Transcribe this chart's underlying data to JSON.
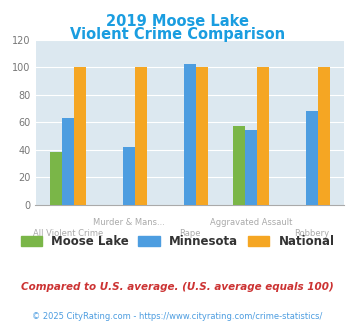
{
  "title_line1": "2019 Moose Lake",
  "title_line2": "Violent Crime Comparison",
  "title_color": "#1a9de0",
  "categories": [
    "All Violent Crime",
    "Murder & Mans...",
    "Rape",
    "Aggravated Assault",
    "Robbery"
  ],
  "cat_top": [
    "",
    "Murder & Mans...",
    "",
    "Aggravated Assault",
    ""
  ],
  "cat_bot": [
    "All Violent Crime",
    "",
    "Rape",
    "",
    "Robbery"
  ],
  "moose_lake": [
    38,
    0,
    0,
    57,
    0
  ],
  "minnesota": [
    63,
    42,
    102,
    54,
    68
  ],
  "national": [
    100,
    100,
    100,
    100,
    100
  ],
  "moose_lake_color": "#7ab648",
  "minnesota_color": "#4d9de0",
  "national_color": "#f5a623",
  "ylim": [
    0,
    120
  ],
  "yticks": [
    0,
    20,
    40,
    60,
    80,
    100,
    120
  ],
  "bg_color": "#dce8f0",
  "footnote1": "Compared to U.S. average. (U.S. average equals 100)",
  "footnote2": "© 2025 CityRating.com - https://www.cityrating.com/crime-statistics/",
  "footnote1_color": "#cc3333",
  "footnote2_color": "#4d9de0",
  "tick_color": "#aaaaaa"
}
